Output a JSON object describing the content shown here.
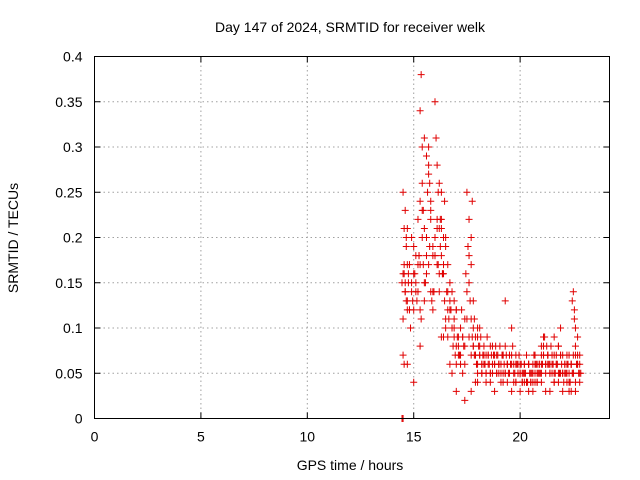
{
  "chart_data": {
    "type": "scatter",
    "title": "Day 147 of 2024, SRMTID for receiver welk",
    "xlabel": "GPS time / hours",
    "ylabel": "SRMTID / TECUs",
    "xlim": [
      0,
      24.2
    ],
    "ylim": [
      0,
      0.4
    ],
    "xticks": [
      0,
      5,
      10,
      15,
      20
    ],
    "xtick_labels": [
      "0",
      "5",
      "10",
      "15",
      "20"
    ],
    "yticks": [
      0,
      0.05,
      0.1,
      0.15,
      0.2,
      0.25,
      0.3,
      0.35,
      0.4
    ],
    "ytick_labels": [
      "0",
      "0.05",
      "0.1",
      "0.15",
      "0.2",
      "0.25",
      "0.3",
      "0.35",
      "0.4"
    ],
    "grid": true,
    "marker": "plus",
    "color": "#e00000",
    "series": [
      {
        "name": "SRMTID",
        "x": [
          14.45,
          14.5,
          14.55,
          14.6,
          14.65,
          14.7,
          14.75,
          14.8,
          14.85,
          14.9,
          14.95,
          15.0,
          15.05,
          15.1,
          15.15,
          15.2,
          15.25,
          15.3,
          15.35,
          15.4,
          15.45,
          15.5,
          15.55,
          15.6,
          15.65,
          15.7,
          15.75,
          15.8,
          15.85,
          15.9,
          15.95,
          16.0,
          16.05,
          16.1,
          16.15,
          16.2,
          16.25,
          16.3,
          16.35,
          16.4,
          16.45,
          16.5,
          16.55,
          16.6,
          16.65,
          16.7,
          16.75,
          16.8,
          16.85,
          16.9,
          16.95,
          17.0,
          17.05,
          17.1,
          17.15,
          17.2,
          17.25,
          17.3,
          17.35,
          17.4,
          17.45,
          17.5,
          17.55,
          17.6,
          17.65,
          17.7,
          17.75,
          17.8,
          17.85,
          17.9,
          17.95,
          18.0,
          18.05,
          18.1,
          18.15,
          18.2,
          18.25,
          18.3,
          18.35,
          18.4,
          18.45,
          18.5,
          18.55,
          18.6,
          18.65,
          18.7,
          18.75,
          18.8,
          18.85,
          18.9,
          18.95,
          19.0,
          19.05,
          19.1,
          19.15,
          19.2,
          19.25,
          19.3,
          19.35,
          19.4,
          19.45,
          19.5,
          19.55,
          19.6,
          19.65,
          19.7,
          19.75,
          19.8,
          19.85,
          19.9,
          19.95,
          20.0,
          20.05,
          20.1,
          20.15,
          20.2,
          20.25,
          20.3,
          20.35,
          20.4,
          20.45,
          20.5,
          20.55,
          20.6,
          20.65,
          20.7,
          20.75,
          20.8,
          20.85,
          20.9,
          20.95,
          21.0,
          21.05,
          21.1,
          21.15,
          21.2,
          21.25,
          21.3,
          21.35,
          21.4,
          21.45,
          21.5,
          21.55,
          21.6,
          21.65,
          21.7,
          21.75,
          21.8,
          21.85,
          21.9,
          21.95,
          22.0,
          22.05,
          22.1,
          22.15,
          22.2,
          22.25,
          22.3,
          22.35,
          22.4,
          22.45,
          22.5,
          22.55,
          22.6,
          22.65,
          22.7,
          22.75,
          22.8,
          22.85,
          14.55,
          14.6,
          14.65,
          14.7,
          14.75,
          14.8,
          14.9,
          15.0,
          15.1,
          15.2,
          15.3,
          15.4,
          15.5,
          15.6,
          15.7,
          15.8,
          15.9,
          16.0,
          16.1,
          16.2,
          16.3,
          16.4,
          16.5,
          16.6,
          16.7,
          16.8,
          16.9,
          17.0,
          17.1,
          17.2,
          17.3,
          17.4,
          17.5,
          17.6,
          17.7,
          17.8,
          17.9,
          18.0,
          18.1,
          18.2,
          18.3,
          18.4,
          18.5,
          18.6,
          18.7,
          18.8,
          18.9,
          19.0,
          19.1,
          19.2,
          19.3,
          19.4,
          19.5,
          19.6,
          19.7,
          19.8,
          19.9,
          20.0,
          20.1,
          20.2,
          20.3,
          20.4,
          20.5,
          20.6,
          20.7,
          20.8,
          20.9,
          21.0,
          21.1,
          21.2,
          21.3,
          21.4,
          21.5,
          21.6,
          21.7,
          21.8,
          21.9,
          22.0,
          22.1,
          22.2,
          22.3,
          22.4,
          22.5,
          22.6,
          22.7,
          22.8,
          14.5,
          14.6,
          14.7,
          14.8,
          14.9,
          15.0,
          15.1,
          15.2,
          15.3,
          15.4,
          15.5,
          15.6,
          15.7,
          15.8,
          15.9,
          16.0,
          16.1,
          16.2,
          16.3,
          16.4,
          16.5,
          16.6,
          16.7,
          16.8,
          16.9,
          17.0,
          17.1,
          17.2,
          17.3,
          17.4,
          17.5,
          17.6,
          17.7,
          17.8,
          17.9,
          18.0,
          18.1,
          18.2,
          18.3,
          18.4,
          18.5,
          18.6,
          18.7,
          18.8,
          18.9,
          19.0,
          19.1,
          19.2,
          19.3,
          19.4,
          19.5,
          19.6,
          19.7,
          19.8,
          19.9,
          20.0,
          20.1,
          20.2,
          20.3,
          20.4,
          20.5,
          20.6,
          20.7,
          20.8,
          20.9,
          21.0,
          21.1,
          21.2,
          21.3,
          21.4,
          21.5,
          21.6,
          21.7,
          21.8,
          21.9,
          22.0,
          22.1,
          22.2,
          22.3,
          22.4,
          22.5,
          22.6,
          22.7,
          22.8,
          14.5,
          14.55,
          14.6,
          14.65,
          14.7,
          15.25,
          15.3,
          15.35,
          15.4,
          15.45,
          15.5,
          15.6,
          15.7,
          15.75,
          15.8,
          15.9,
          16.0,
          16.1,
          16.15,
          16.2,
          16.25,
          16.3,
          16.35,
          16.4,
          16.45,
          16.5,
          16.6,
          16.7,
          16.8,
          16.9,
          17.0,
          17.6,
          17.7,
          17.75,
          17.8,
          17.85,
          17.9,
          18.0,
          18.1,
          19.3,
          20.7,
          21.0,
          21.1,
          21.3,
          21.6,
          21.9,
          22.3,
          22.45,
          22.5,
          22.55,
          22.6,
          22.7,
          14.5,
          14.55,
          14.7,
          15.0,
          15.3,
          16.3,
          17.0,
          17.4,
          17.7,
          18.0,
          18.2,
          18.4,
          18.6,
          18.8,
          19.0,
          19.2,
          19.4,
          19.6,
          19.8,
          20.0,
          20.2,
          20.4,
          20.6,
          20.8,
          21.0,
          21.2,
          21.4,
          21.6,
          21.8,
          22.0,
          22.2,
          22.4,
          22.6,
          22.8,
          14.45,
          14.5
        ],
        "y": [
          0.15,
          0.11,
          0.16,
          0.14,
          0.2,
          0.13,
          0.15,
          0.12,
          0.1,
          0.15,
          0.13,
          0.19,
          0.16,
          0.14,
          0.13,
          0.22,
          0.18,
          0.34,
          0.38,
          0.2,
          0.17,
          0.13,
          0.15,
          0.29,
          0.25,
          0.27,
          0.19,
          0.22,
          0.13,
          0.12,
          0.14,
          0.35,
          0.31,
          0.21,
          0.17,
          0.26,
          0.22,
          0.25,
          0.16,
          0.2,
          0.24,
          0.19,
          0.14,
          0.12,
          0.11,
          0.15,
          0.12,
          0.1,
          0.08,
          0.09,
          0.07,
          0.06,
          0.09,
          0.08,
          0.07,
          0.1,
          0.12,
          0.09,
          0.08,
          0.11,
          0.16,
          0.25,
          0.19,
          0.15,
          0.13,
          0.11,
          0.09,
          0.08,
          0.07,
          0.09,
          0.06,
          0.1,
          0.08,
          0.07,
          0.09,
          0.06,
          0.07,
          0.08,
          0.06,
          0.05,
          0.09,
          0.07,
          0.06,
          0.08,
          0.07,
          0.05,
          0.07,
          0.06,
          0.08,
          0.05,
          0.07,
          0.06,
          0.08,
          0.06,
          0.07,
          0.05,
          0.06,
          0.08,
          0.07,
          0.06,
          0.05,
          0.07,
          0.06,
          0.1,
          0.08,
          0.06,
          0.05,
          0.07,
          0.06,
          0.05,
          0.07,
          0.05,
          0.06,
          0.04,
          0.05,
          0.06,
          0.05,
          0.07,
          0.04,
          0.06,
          0.05,
          0.04,
          0.05,
          0.06,
          0.07,
          0.05,
          0.06,
          0.04,
          0.05,
          0.06,
          0.05,
          0.08,
          0.06,
          0.07,
          0.09,
          0.06,
          0.08,
          0.07,
          0.06,
          0.05,
          0.08,
          0.07,
          0.06,
          0.09,
          0.05,
          0.07,
          0.06,
          0.08,
          0.05,
          0.07,
          0.06,
          0.05,
          0.04,
          0.06,
          0.05,
          0.07,
          0.06,
          0.05,
          0.04,
          0.06,
          0.05,
          0.07,
          0.12,
          0.08,
          0.06,
          0.07,
          0.05,
          0.06,
          0.05,
          0.17,
          0.14,
          0.13,
          0.17,
          0.16,
          0.12,
          0.2,
          0.16,
          0.15,
          0.17,
          0.24,
          0.26,
          0.21,
          0.16,
          0.28,
          0.23,
          0.18,
          0.2,
          0.17,
          0.14,
          0.21,
          0.17,
          0.2,
          0.14,
          0.12,
          0.1,
          0.13,
          0.08,
          0.07,
          0.06,
          0.05,
          0.08,
          0.14,
          0.22,
          0.17,
          0.1,
          0.07,
          0.06,
          0.08,
          0.05,
          0.06,
          0.07,
          0.06,
          0.05,
          0.06,
          0.07,
          0.05,
          0.06,
          0.04,
          0.07,
          0.05,
          0.06,
          0.05,
          0.07,
          0.05,
          0.04,
          0.06,
          0.05,
          0.04,
          0.05,
          0.04,
          0.06,
          0.04,
          0.05,
          0.07,
          0.06,
          0.05,
          0.06,
          0.08,
          0.05,
          0.07,
          0.06,
          0.05,
          0.04,
          0.06,
          0.05,
          0.07,
          0.05,
          0.06,
          0.05,
          0.04,
          0.06,
          0.05,
          0.04,
          0.06,
          0.05,
          0.16,
          0.15,
          0.12,
          0.17,
          0.14,
          0.12,
          0.18,
          0.14,
          0.17,
          0.23,
          0.15,
          0.2,
          0.17,
          0.14,
          0.19,
          0.18,
          0.22,
          0.16,
          0.22,
          0.16,
          0.11,
          0.17,
          0.13,
          0.14,
          0.11,
          0.12,
          0.09,
          0.07,
          0.09,
          0.06,
          0.11,
          0.09,
          0.07,
          0.08,
          0.07,
          0.05,
          0.07,
          0.06,
          0.07,
          0.05,
          0.07,
          0.05,
          0.08,
          0.06,
          0.07,
          0.06,
          0.05,
          0.07,
          0.05,
          0.06,
          0.07,
          0.06,
          0.04,
          0.06,
          0.05,
          0.06,
          0.05,
          0.06,
          0.04,
          0.06,
          0.05,
          0.04,
          0.06,
          0.05,
          0.06,
          0.05,
          0.07,
          0.06,
          0.07,
          0.05,
          0.06,
          0.07,
          0.06,
          0.08,
          0.05,
          0.07,
          0.05,
          0.06,
          0.07,
          0.06,
          0.05,
          0.07,
          0.06,
          0.07,
          0.25,
          0.21,
          0.23,
          0.19,
          0.21,
          0.18,
          0.12,
          0.11,
          0.3,
          0.23,
          0.31,
          0.18,
          0.3,
          0.26,
          0.24,
          0.14,
          0.18,
          0.28,
          0.25,
          0.21,
          0.19,
          0.18,
          0.16,
          0.09,
          0.13,
          0.1,
          0.09,
          0.06,
          0.05,
          0.1,
          0.12,
          0.18,
          0.2,
          0.24,
          0.13,
          0.11,
          0.04,
          0.09,
          0.1,
          0.13,
          0.04,
          0.07,
          0.09,
          0.06,
          0.05,
          0.1,
          0.03,
          0.13,
          0.14,
          0.11,
          0.1,
          0.09,
          0.07,
          0.06,
          0.06,
          0.04,
          0.08,
          0.09,
          0.03,
          0.02,
          0.03,
          0.04,
          0.05,
          0.04,
          0.04,
          0.03,
          0.05,
          0.04,
          0.04,
          0.03,
          0.04,
          0.03,
          0.04,
          0.03,
          0.03,
          0.04,
          0.04,
          0.03,
          0.03,
          0.04,
          0.04,
          0.03,
          0.04,
          0.03,
          0.03,
          0.04,
          0.0,
          0.0
        ]
      }
    ]
  }
}
